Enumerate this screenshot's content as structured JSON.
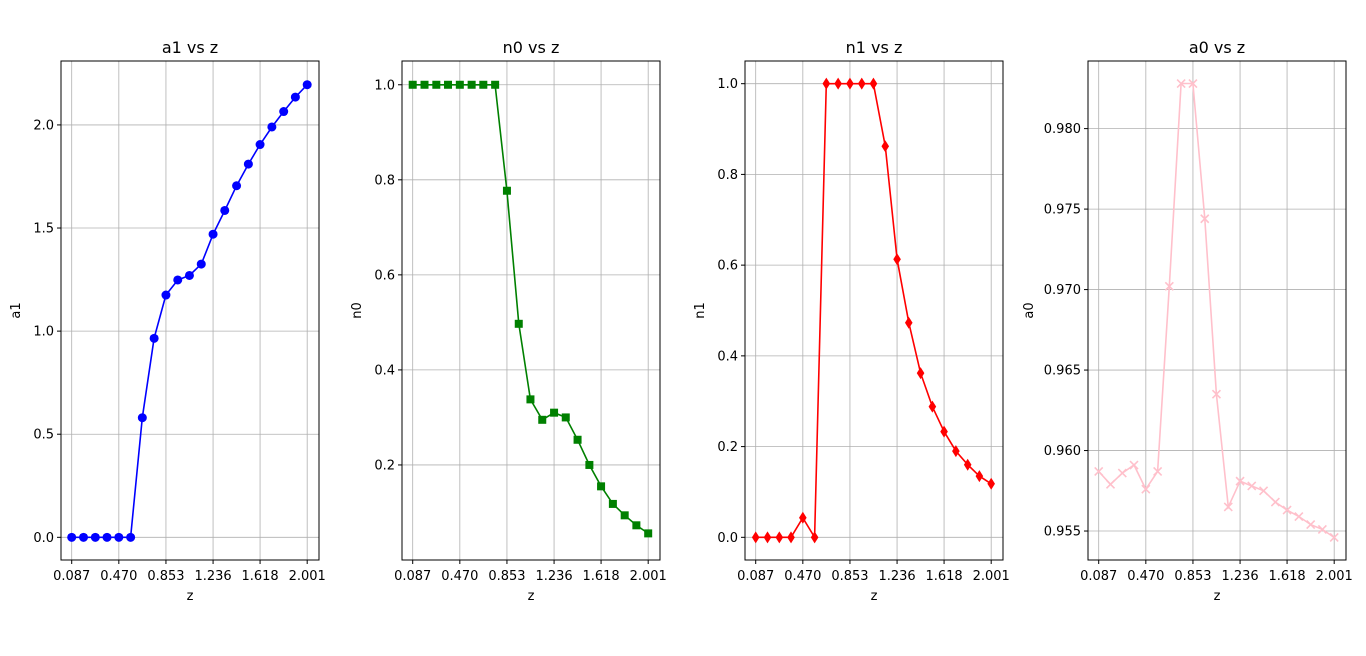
{
  "chart_data": [
    {
      "type": "line",
      "title": "a1 vs z",
      "xlabel": "z",
      "ylabel": "a1",
      "grid": true,
      "xlim": [
        0.0,
        2.097
      ],
      "ylim": [
        -0.11,
        2.31
      ],
      "x_ticks": [
        0.087,
        0.47,
        0.853,
        1.236,
        1.618,
        2.001
      ],
      "x_tick_labels": [
        "0.087",
        "0.470",
        "0.853",
        "1.236",
        "1.618",
        "2.001"
      ],
      "y_ticks": [
        0.0,
        0.5,
        1.0,
        1.5,
        2.0
      ],
      "y_tick_labels": [
        "0.0",
        "0.5",
        "1.0",
        "1.5",
        "2.0"
      ],
      "series": [
        {
          "color": "#0000ff",
          "marker": "circle",
          "x": [
            0.087,
            0.183,
            0.279,
            0.374,
            0.47,
            0.566,
            0.661,
            0.757,
            0.853,
            0.949,
            1.044,
            1.14,
            1.236,
            1.331,
            1.427,
            1.523,
            1.618,
            1.714,
            1.81,
            1.905,
            2.001
          ],
          "y": [
            0.0,
            0.0,
            0.0,
            0.0,
            0.0,
            0.0,
            0.58,
            0.965,
            1.175,
            1.248,
            1.27,
            1.325,
            1.47,
            1.585,
            1.705,
            1.81,
            1.905,
            1.99,
            2.065,
            2.135,
            2.195
          ]
        }
      ]
    },
    {
      "type": "line",
      "title": "n0 vs z",
      "xlabel": "z",
      "ylabel": "n0",
      "grid": true,
      "xlim": [
        0.0,
        2.097
      ],
      "ylim": [
        0.0,
        1.05
      ],
      "x_ticks": [
        0.087,
        0.47,
        0.853,
        1.236,
        1.618,
        2.001
      ],
      "x_tick_labels": [
        "0.087",
        "0.470",
        "0.853",
        "1.236",
        "1.618",
        "2.001"
      ],
      "y_ticks": [
        0.2,
        0.4,
        0.6,
        0.8,
        1.0
      ],
      "y_tick_labels": [
        "0.2",
        "0.4",
        "0.6",
        "0.8",
        "1.0"
      ],
      "series": [
        {
          "color": "#008000",
          "marker": "square",
          "x": [
            0.087,
            0.183,
            0.279,
            0.374,
            0.47,
            0.566,
            0.661,
            0.757,
            0.853,
            0.949,
            1.044,
            1.14,
            1.236,
            1.331,
            1.427,
            1.523,
            1.618,
            1.714,
            1.81,
            1.905,
            2.001
          ],
          "y": [
            1.0,
            1.0,
            1.0,
            1.0,
            1.0,
            1.0,
            1.0,
            1.0,
            0.777,
            0.497,
            0.338,
            0.295,
            0.31,
            0.3,
            0.253,
            0.2,
            0.155,
            0.118,
            0.094,
            0.073,
            0.056
          ]
        }
      ]
    },
    {
      "type": "line",
      "title": "n1 vs z",
      "xlabel": "z",
      "ylabel": "n1",
      "grid": true,
      "xlim": [
        0.0,
        2.097
      ],
      "ylim": [
        -0.05,
        1.05
      ],
      "x_ticks": [
        0.087,
        0.47,
        0.853,
        1.236,
        1.618,
        2.001
      ],
      "x_tick_labels": [
        "0.087",
        "0.470",
        "0.853",
        "1.236",
        "1.618",
        "2.001"
      ],
      "y_ticks": [
        0.0,
        0.2,
        0.4,
        0.6,
        0.8,
        1.0
      ],
      "y_tick_labels": [
        "0.0",
        "0.2",
        "0.4",
        "0.6",
        "0.8",
        "1.0"
      ],
      "series": [
        {
          "color": "#ff0000",
          "marker": "diamond",
          "x": [
            0.087,
            0.183,
            0.279,
            0.374,
            0.47,
            0.566,
            0.661,
            0.757,
            0.853,
            0.949,
            1.044,
            1.14,
            1.236,
            1.331,
            1.427,
            1.523,
            1.618,
            1.714,
            1.81,
            1.905,
            2.001
          ],
          "y": [
            0.0,
            0.0,
            0.0,
            0.0,
            0.043,
            0.0,
            1.0,
            1.0,
            1.0,
            1.0,
            1.0,
            0.862,
            0.613,
            0.473,
            0.362,
            0.288,
            0.233,
            0.19,
            0.16,
            0.135,
            0.118
          ]
        }
      ]
    },
    {
      "type": "line",
      "title": "a0 vs z",
      "xlabel": "z",
      "ylabel": "a0",
      "grid": true,
      "xlim": [
        0.0,
        2.097
      ],
      "ylim": [
        0.9532,
        0.9842
      ],
      "x_ticks": [
        0.087,
        0.47,
        0.853,
        1.236,
        1.618,
        2.001
      ],
      "x_tick_labels": [
        "0.087",
        "0.470",
        "0.853",
        "1.236",
        "1.618",
        "2.001"
      ],
      "y_ticks": [
        0.955,
        0.96,
        0.965,
        0.97,
        0.975,
        0.98
      ],
      "y_tick_labels": [
        "0.955",
        "0.960",
        "0.965",
        "0.970",
        "0.975",
        "0.980"
      ],
      "series": [
        {
          "color": "#ffc0cb",
          "marker": "x",
          "x": [
            0.087,
            0.183,
            0.279,
            0.374,
            0.47,
            0.566,
            0.661,
            0.757,
            0.853,
            0.949,
            1.044,
            1.14,
            1.236,
            1.331,
            1.427,
            1.523,
            1.618,
            1.714,
            1.81,
            1.905,
            2.001
          ],
          "y": [
            0.9587,
            0.9579,
            0.9586,
            0.9591,
            0.9576,
            0.9587,
            0.9702,
            0.9828,
            0.9828,
            0.9744,
            0.9635,
            0.9565,
            0.9581,
            0.9578,
            0.9575,
            0.9568,
            0.9563,
            0.9559,
            0.9554,
            0.9551,
            0.9546
          ]
        }
      ]
    }
  ]
}
